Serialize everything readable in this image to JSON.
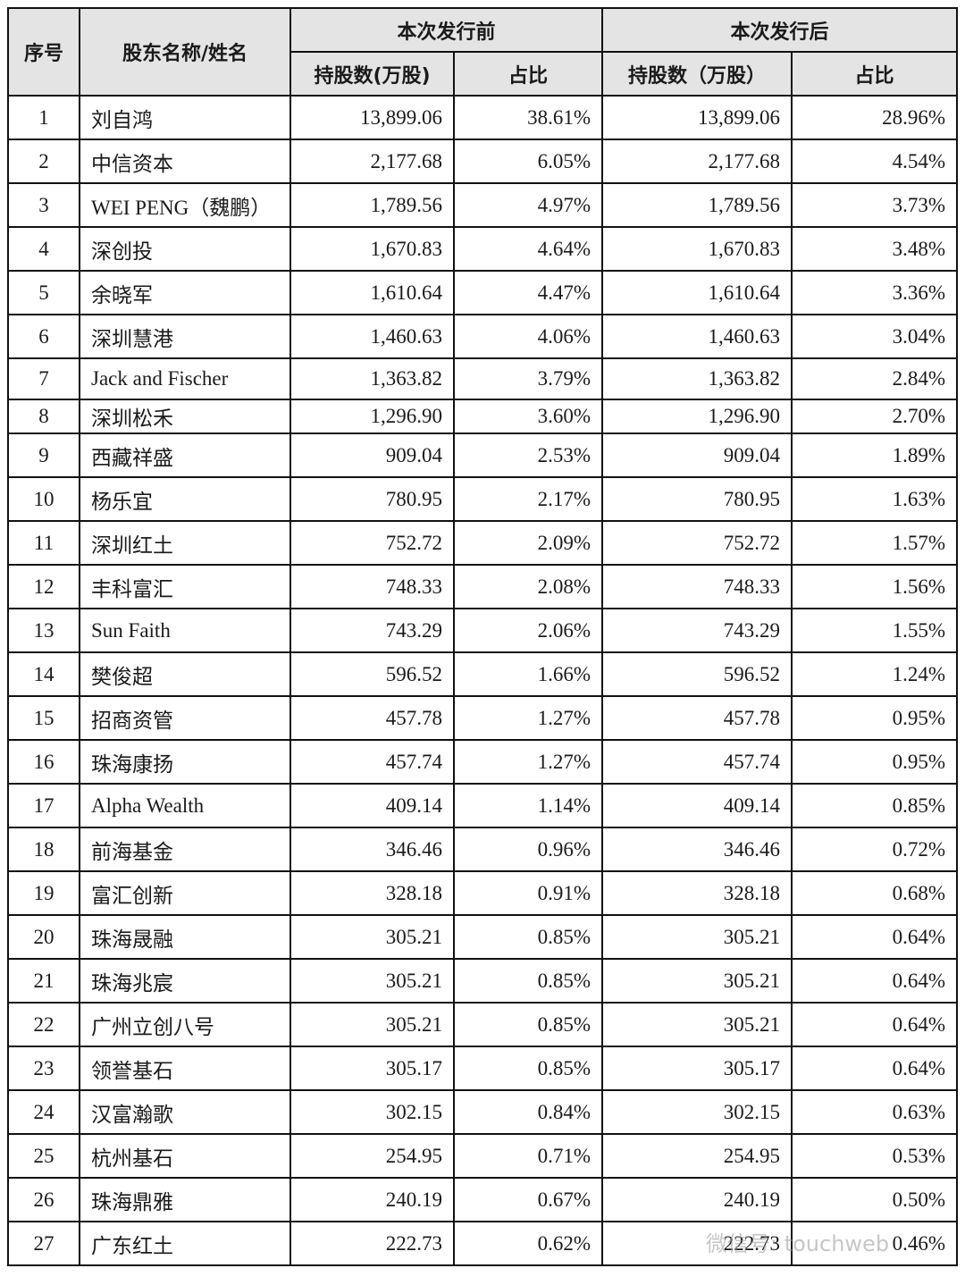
{
  "header": {
    "col_no": "序号",
    "col_name": "股东名称/姓名",
    "group_before": "本次发行前",
    "group_after": "本次发行后",
    "shares_before": "持股数(万股)",
    "ratio_before": "占比",
    "shares_after": "持股数（万股）",
    "ratio_after": "占比"
  },
  "rows": [
    [
      "1",
      "刘自鸿",
      "13,899.06",
      "38.61%",
      "13,899.06",
      "28.96%"
    ],
    [
      "2",
      "中信资本",
      "2,177.68",
      "6.05%",
      "2,177.68",
      "4.54%"
    ],
    [
      "3",
      "WEI PENG（魏鹏）",
      "1,789.56",
      "4.97%",
      "1,789.56",
      "3.73%"
    ],
    [
      "4",
      "深创投",
      "1,670.83",
      "4.64%",
      "1,670.83",
      "3.48%"
    ],
    [
      "5",
      "余晓军",
      "1,610.64",
      "4.47%",
      "1,610.64",
      "3.36%"
    ],
    [
      "6",
      "深圳慧港",
      "1,460.63",
      "4.06%",
      "1,460.63",
      "3.04%"
    ],
    [
      "7",
      "Jack and Fischer",
      "1,363.82",
      "3.79%",
      "1,363.82",
      "2.84%"
    ],
    [
      "8",
      "深圳松禾",
      "1,296.90",
      "3.60%",
      "1,296.90",
      "2.70%"
    ],
    [
      "9",
      "西藏祥盛",
      "909.04",
      "2.53%",
      "909.04",
      "1.89%"
    ],
    [
      "10",
      "杨乐宜",
      "780.95",
      "2.17%",
      "780.95",
      "1.63%"
    ],
    [
      "11",
      "深圳红土",
      "752.72",
      "2.09%",
      "752.72",
      "1.57%"
    ],
    [
      "12",
      "丰科富汇",
      "748.33",
      "2.08%",
      "748.33",
      "1.56%"
    ],
    [
      "13",
      "Sun Faith",
      "743.29",
      "2.06%",
      "743.29",
      "1.55%"
    ],
    [
      "14",
      "樊俊超",
      "596.52",
      "1.66%",
      "596.52",
      "1.24%"
    ],
    [
      "15",
      "招商资管",
      "457.78",
      "1.27%",
      "457.78",
      "0.95%"
    ],
    [
      "16",
      "珠海康扬",
      "457.74",
      "1.27%",
      "457.74",
      "0.95%"
    ],
    [
      "17",
      "Alpha Wealth",
      "409.14",
      "1.14%",
      "409.14",
      "0.85%"
    ],
    [
      "18",
      "前海基金",
      "346.46",
      "0.96%",
      "346.46",
      "0.72%"
    ],
    [
      "19",
      "富汇创新",
      "328.18",
      "0.91%",
      "328.18",
      "0.68%"
    ],
    [
      "20",
      "珠海晟融",
      "305.21",
      "0.85%",
      "305.21",
      "0.64%"
    ],
    [
      "21",
      "珠海兆宸",
      "305.21",
      "0.85%",
      "305.21",
      "0.64%"
    ],
    [
      "22",
      "广州立创八号",
      "305.21",
      "0.85%",
      "305.21",
      "0.64%"
    ],
    [
      "23",
      "领誉基石",
      "305.17",
      "0.85%",
      "305.17",
      "0.64%"
    ],
    [
      "24",
      "汉富瀚歌",
      "302.15",
      "0.84%",
      "302.15",
      "0.63%"
    ],
    [
      "25",
      "杭州基石",
      "254.95",
      "0.71%",
      "254.95",
      "0.53%"
    ],
    [
      "26",
      "珠海鼎雅",
      "240.19",
      "0.67%",
      "240.19",
      "0.50%"
    ],
    [
      "27",
      "广东红土",
      "222.73",
      "0.62%",
      "222.73",
      "0.46%"
    ]
  ],
  "watermark": "微信号: touchweb"
}
